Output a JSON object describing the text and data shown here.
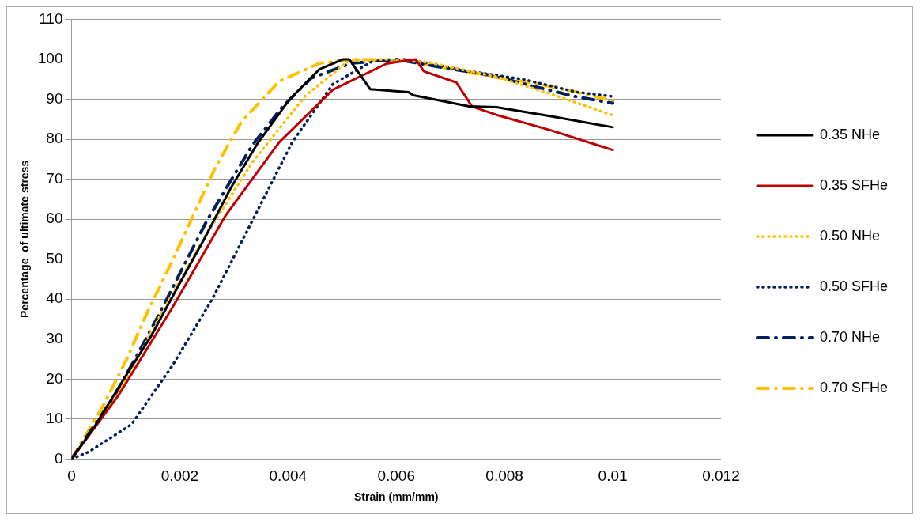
{
  "chart_data": {
    "type": "line",
    "xlabel": "Strain (mm/mm)",
    "ylabel": "Percentage  of ultimate stress",
    "xlim": [
      0,
      0.012
    ],
    "xticks": [
      0,
      0.002,
      0.004,
      0.006,
      0.008,
      0.01,
      0.012
    ],
    "ylim": [
      0,
      110
    ],
    "yticks": [
      0,
      10,
      20,
      30,
      40,
      50,
      60,
      70,
      80,
      90,
      100,
      110
    ],
    "grid": "y",
    "legend": "right",
    "marker": "none",
    "series": [
      {
        "name": "0.35 NHe",
        "color": "#000000",
        "line_style": "solid",
        "x": [
          0,
          0.00042,
          0.00101,
          0.00146,
          0.00196,
          0.00245,
          0.00295,
          0.00344,
          0.00403,
          0.00458,
          0.00502,
          0.00513,
          0.00552,
          0.00622,
          0.00632,
          0.00735,
          0.00785,
          0.00884,
          0.01
        ],
        "values": [
          0,
          8,
          21,
          30.5,
          43,
          55,
          68,
          79,
          90,
          97.5,
          100,
          100,
          92.5,
          91.8,
          91,
          88.2,
          88,
          85.8,
          83
        ]
      },
      {
        "name": "0.35 SFHe",
        "color": "#c00000",
        "line_style": "solid",
        "x": [
          0,
          0.00087,
          0.00186,
          0.00285,
          0.00384,
          0.00483,
          0.00582,
          0.00636,
          0.00651,
          0.00711,
          0.0074,
          0.00785,
          0.00884,
          0.01
        ],
        "values": [
          0,
          16,
          37.8,
          61,
          79.3,
          92.4,
          98.9,
          100,
          97,
          94.2,
          88.2,
          86.1,
          82.3,
          77.3
        ]
      },
      {
        "name": "0.50 NHe",
        "color": "#ffc000",
        "line_style": "dotted",
        "x": [
          0,
          0.00082,
          0.00166,
          0.00245,
          0.00334,
          0.00433,
          0.00512,
          0.0058,
          0.0066,
          0.00785,
          0.00884,
          0.01
        ],
        "values": [
          0,
          15.3,
          36.4,
          55.3,
          74.2,
          91,
          99.6,
          100,
          99.2,
          95.6,
          91.4,
          86
        ]
      },
      {
        "name": "0.50 SFHe",
        "color": "#002060",
        "line_style": "dotted",
        "x": [
          0,
          0.00032,
          0.00111,
          0.00186,
          0.0026,
          0.00334,
          0.00408,
          0.00483,
          0.00557,
          0.0062,
          0.00735,
          0.00834,
          0.00933,
          0.01
        ],
        "values": [
          0,
          1.8,
          8.7,
          23.3,
          40,
          59.6,
          79.3,
          93.8,
          99.6,
          100,
          97,
          95,
          91.8,
          90.7
        ]
      },
      {
        "name": "0.70 NHe",
        "color": "#002060",
        "line_style": "dashed",
        "x": [
          0,
          0.00025,
          0.00077,
          0.00116,
          0.00161,
          0.00206,
          0.0025,
          0.00295,
          0.00334,
          0.00389,
          0.00443,
          0.00517,
          0.006,
          0.00696,
          0.00775,
          0.00855,
          0.0093,
          0.01
        ],
        "values": [
          0,
          5,
          15.3,
          24.7,
          36,
          48,
          59.6,
          69.8,
          78.5,
          88,
          95.3,
          99,
          100,
          97.7,
          96,
          93.2,
          90.7,
          89
        ]
      },
      {
        "name": "0.70 SFHe",
        "color": "#ffc000",
        "line_style": "dashed",
        "x": [
          0,
          0.00057,
          0.00101,
          0.00141,
          0.00186,
          0.00225,
          0.00265,
          0.00314,
          0.00384,
          0.00458,
          0.00522,
          0.0062,
          0.00696,
          0.0078,
          0.0086,
          0.00933,
          0.01
        ],
        "values": [
          0,
          13,
          24.7,
          37,
          49.5,
          61,
          72.7,
          84.4,
          94.5,
          99,
          100,
          99.7,
          97.7,
          95.6,
          93.9,
          91.8,
          89.6
        ]
      }
    ]
  }
}
